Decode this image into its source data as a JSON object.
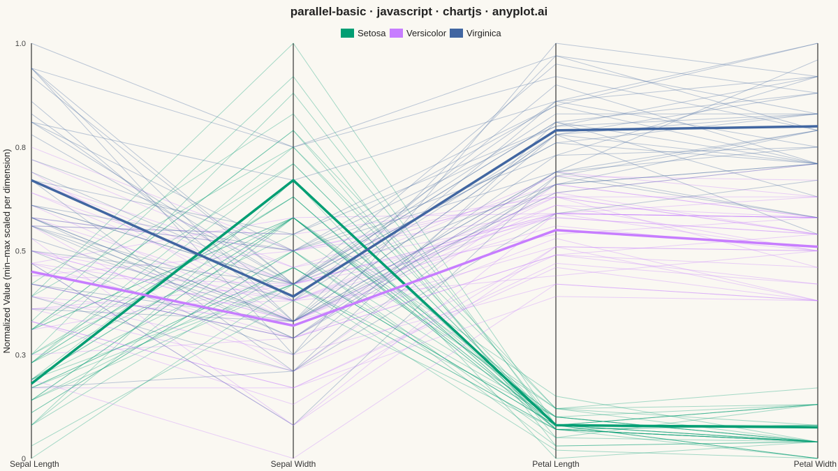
{
  "chart_data": {
    "type": "line",
    "subtype": "parallel-coordinates",
    "title": "parallel-basic · javascript · chartjs · anyplot.ai",
    "ylabel": "Normalized Value (min–max scaled per dimension)",
    "ylim": [
      0,
      1
    ],
    "y_ticks": [
      {
        "value": 0,
        "label": "0"
      },
      {
        "value": 0.25,
        "label": "0.3"
      },
      {
        "value": 0.5,
        "label": "0.5"
      },
      {
        "value": 0.75,
        "label": "0.8"
      },
      {
        "value": 1,
        "label": "1.0"
      }
    ],
    "dimensions": [
      "Sepal Length",
      "Sepal Width",
      "Petal Length",
      "Petal Width"
    ],
    "legend_position": "top-center",
    "grid": false,
    "series": [
      {
        "name": "Setosa",
        "color": "#009e73",
        "mean": [
          0.18,
          0.67,
          0.08,
          0.075
        ],
        "lines": [
          [
            0.23,
            0.63,
            0.07,
            0.04
          ],
          [
            0.17,
            0.42,
            0.07,
            0.04
          ],
          [
            0.11,
            0.5,
            0.05,
            0.04
          ],
          [
            0.08,
            0.46,
            0.08,
            0.04
          ],
          [
            0.19,
            0.67,
            0.07,
            0.04
          ],
          [
            0.31,
            0.79,
            0.12,
            0.13
          ],
          [
            0.08,
            0.58,
            0.07,
            0.08
          ],
          [
            0.19,
            0.58,
            0.08,
            0.04
          ],
          [
            0.03,
            0.38,
            0.07,
            0.04
          ],
          [
            0.17,
            0.46,
            0.08,
            0.0
          ],
          [
            0.31,
            0.71,
            0.08,
            0.04
          ],
          [
            0.14,
            0.58,
            0.1,
            0.04
          ],
          [
            0.14,
            0.42,
            0.07,
            0.0
          ],
          [
            0.0,
            0.42,
            0.02,
            0.0
          ],
          [
            0.42,
            0.83,
            0.03,
            0.04
          ],
          [
            0.39,
            1.0,
            0.08,
            0.13
          ],
          [
            0.31,
            0.79,
            0.05,
            0.13
          ],
          [
            0.23,
            0.63,
            0.07,
            0.08
          ],
          [
            0.39,
            0.75,
            0.12,
            0.08
          ],
          [
            0.23,
            0.75,
            0.08,
            0.08
          ],
          [
            0.31,
            0.58,
            0.12,
            0.04
          ],
          [
            0.23,
            0.71,
            0.08,
            0.13
          ],
          [
            0.08,
            0.67,
            0.0,
            0.04
          ],
          [
            0.23,
            0.54,
            0.12,
            0.17
          ],
          [
            0.14,
            0.58,
            0.15,
            0.04
          ],
          [
            0.19,
            0.42,
            0.1,
            0.04
          ],
          [
            0.19,
            0.58,
            0.1,
            0.13
          ],
          [
            0.25,
            0.63,
            0.08,
            0.04
          ],
          [
            0.25,
            0.58,
            0.07,
            0.04
          ],
          [
            0.11,
            0.5,
            0.1,
            0.04
          ],
          [
            0.14,
            0.46,
            0.1,
            0.04
          ],
          [
            0.31,
            0.58,
            0.08,
            0.13
          ],
          [
            0.25,
            0.88,
            0.08,
            0.0
          ],
          [
            0.33,
            0.92,
            0.07,
            0.04
          ],
          [
            0.17,
            0.46,
            0.08,
            0.0
          ],
          [
            0.19,
            0.5,
            0.03,
            0.04
          ]
        ]
      },
      {
        "name": "Versicolor",
        "color": "#c77dff",
        "mean": [
          0.45,
          0.32,
          0.55,
          0.51
        ],
        "lines": [
          [
            0.75,
            0.5,
            0.63,
            0.54
          ],
          [
            0.58,
            0.5,
            0.59,
            0.58
          ],
          [
            0.72,
            0.46,
            0.66,
            0.58
          ],
          [
            0.33,
            0.13,
            0.51,
            0.5
          ],
          [
            0.61,
            0.33,
            0.61,
            0.58
          ],
          [
            0.39,
            0.33,
            0.59,
            0.5
          ],
          [
            0.56,
            0.54,
            0.63,
            0.63
          ],
          [
            0.17,
            0.17,
            0.39,
            0.38
          ],
          [
            0.64,
            0.38,
            0.61,
            0.5
          ],
          [
            0.25,
            0.29,
            0.49,
            0.54
          ],
          [
            0.19,
            0.0,
            0.42,
            0.38
          ],
          [
            0.44,
            0.42,
            0.54,
            0.58
          ],
          [
            0.47,
            0.08,
            0.51,
            0.38
          ],
          [
            0.5,
            0.38,
            0.63,
            0.54
          ],
          [
            0.36,
            0.38,
            0.44,
            0.5
          ],
          [
            0.67,
            0.46,
            0.58,
            0.54
          ],
          [
            0.36,
            0.42,
            0.59,
            0.58
          ],
          [
            0.42,
            0.29,
            0.53,
            0.38
          ],
          [
            0.53,
            0.08,
            0.59,
            0.58
          ],
          [
            0.36,
            0.21,
            0.49,
            0.42
          ],
          [
            0.44,
            0.5,
            0.64,
            0.71
          ],
          [
            0.5,
            0.33,
            0.51,
            0.5
          ],
          [
            0.56,
            0.21,
            0.66,
            0.58
          ],
          [
            0.5,
            0.33,
            0.63,
            0.46
          ],
          [
            0.58,
            0.38,
            0.56,
            0.5
          ],
          [
            0.64,
            0.42,
            0.58,
            0.54
          ],
          [
            0.69,
            0.33,
            0.64,
            0.54
          ],
          [
            0.67,
            0.42,
            0.68,
            0.67
          ],
          [
            0.47,
            0.38,
            0.59,
            0.58
          ],
          [
            0.39,
            0.25,
            0.42,
            0.38
          ],
          [
            0.33,
            0.17,
            0.47,
            0.42
          ],
          [
            0.33,
            0.17,
            0.46,
            0.38
          ],
          [
            0.42,
            0.29,
            0.49,
            0.46
          ],
          [
            0.47,
            0.29,
            0.69,
            0.63
          ],
          [
            0.31,
            0.42,
            0.59,
            0.58
          ],
          [
            0.47,
            0.58,
            0.59,
            0.63
          ]
        ]
      },
      {
        "name": "Virginica",
        "color": "#4166a1",
        "mean": [
          0.67,
          0.39,
          0.79,
          0.8
        ],
        "lines": [
          [
            0.56,
            0.54,
            0.85,
            1.0
          ],
          [
            0.42,
            0.29,
            0.69,
            0.75
          ],
          [
            0.78,
            0.42,
            0.83,
            0.83
          ],
          [
            0.56,
            0.38,
            0.78,
            0.71
          ],
          [
            0.61,
            0.42,
            0.81,
            0.88
          ],
          [
            0.92,
            0.42,
            0.95,
            0.83
          ],
          [
            0.17,
            0.21,
            0.59,
            0.67
          ],
          [
            0.83,
            0.38,
            0.9,
            0.71
          ],
          [
            0.67,
            0.21,
            0.81,
            0.71
          ],
          [
            0.81,
            0.67,
            0.86,
            1.0
          ],
          [
            0.61,
            0.5,
            0.69,
            0.79
          ],
          [
            0.58,
            0.29,
            0.73,
            0.75
          ],
          [
            0.69,
            0.42,
            0.76,
            0.83
          ],
          [
            0.39,
            0.21,
            0.68,
            0.79
          ],
          [
            0.42,
            0.33,
            0.69,
            0.96
          ],
          [
            0.58,
            0.5,
            0.73,
            0.92
          ],
          [
            0.61,
            0.42,
            0.76,
            0.71
          ],
          [
            0.94,
            0.75,
            0.97,
            0.88
          ],
          [
            0.94,
            0.25,
            1.0,
            0.92
          ],
          [
            0.47,
            0.08,
            0.68,
            0.58
          ],
          [
            0.72,
            0.5,
            0.8,
            0.92
          ],
          [
            0.36,
            0.33,
            0.66,
            0.79
          ],
          [
            0.94,
            0.33,
            0.97,
            0.79
          ],
          [
            0.56,
            0.29,
            0.66,
            0.71
          ],
          [
            0.67,
            0.54,
            0.8,
            0.83
          ],
          [
            0.81,
            0.5,
            0.85,
            0.71
          ],
          [
            0.53,
            0.33,
            0.64,
            0.71
          ],
          [
            0.5,
            0.42,
            0.66,
            0.71
          ],
          [
            0.58,
            0.33,
            0.78,
            0.83
          ],
          [
            0.81,
            0.42,
            0.81,
            0.63
          ],
          [
            0.86,
            0.33,
            0.86,
            0.75
          ],
          [
            1.0,
            0.75,
            0.92,
            0.79
          ],
          [
            0.58,
            0.33,
            0.78,
            0.88
          ],
          [
            0.56,
            0.33,
            0.69,
            0.58
          ],
          [
            0.5,
            0.25,
            0.78,
            0.54
          ],
          [
            0.94,
            0.42,
            0.86,
            0.92
          ]
        ]
      }
    ]
  }
}
